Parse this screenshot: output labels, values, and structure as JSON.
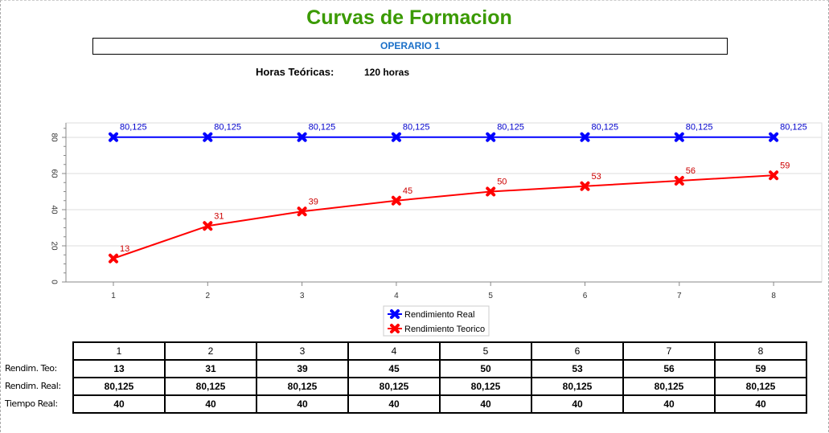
{
  "title": "Curvas de Formacion",
  "operator": "OPERARIO 1",
  "horas_label": "Horas Teóricas:",
  "horas_value": "120 horas",
  "chart_data": {
    "type": "line",
    "x": [
      1,
      2,
      3,
      4,
      5,
      6,
      7,
      8
    ],
    "ylim": [
      0,
      88
    ],
    "yticks": [
      0,
      20,
      40,
      60,
      80
    ],
    "legend_position": "bottom",
    "grid": true,
    "series": [
      {
        "name": "Rendimiento Real",
        "color": "#0000ff",
        "values": [
          80.125,
          80.125,
          80.125,
          80.125,
          80.125,
          80.125,
          80.125,
          80.125
        ],
        "labels": [
          "80,125",
          "80,125",
          "80,125",
          "80,125",
          "80,125",
          "80,125",
          "80,125",
          "80,125"
        ]
      },
      {
        "name": "Rendimiento Teorico",
        "color": "#ff0000",
        "values": [
          13,
          31,
          39,
          45,
          50,
          53,
          56,
          59
        ],
        "labels": [
          "13",
          "31",
          "39",
          "45",
          "50",
          "53",
          "56",
          "59"
        ]
      }
    ]
  },
  "table": {
    "headers": [
      "1",
      "2",
      "3",
      "4",
      "5",
      "6",
      "7",
      "8"
    ],
    "rows": [
      {
        "label": "Rendim. Teo:",
        "values": [
          "13",
          "31",
          "39",
          "45",
          "50",
          "53",
          "56",
          "59"
        ]
      },
      {
        "label": "Rendim. Real:",
        "values": [
          "80,125",
          "80,125",
          "80,125",
          "80,125",
          "80,125",
          "80,125",
          "80,125",
          "80,125"
        ]
      },
      {
        "label": "Tiempo Real:",
        "values": [
          "40",
          "40",
          "40",
          "40",
          "40",
          "40",
          "40",
          "40"
        ]
      }
    ]
  }
}
